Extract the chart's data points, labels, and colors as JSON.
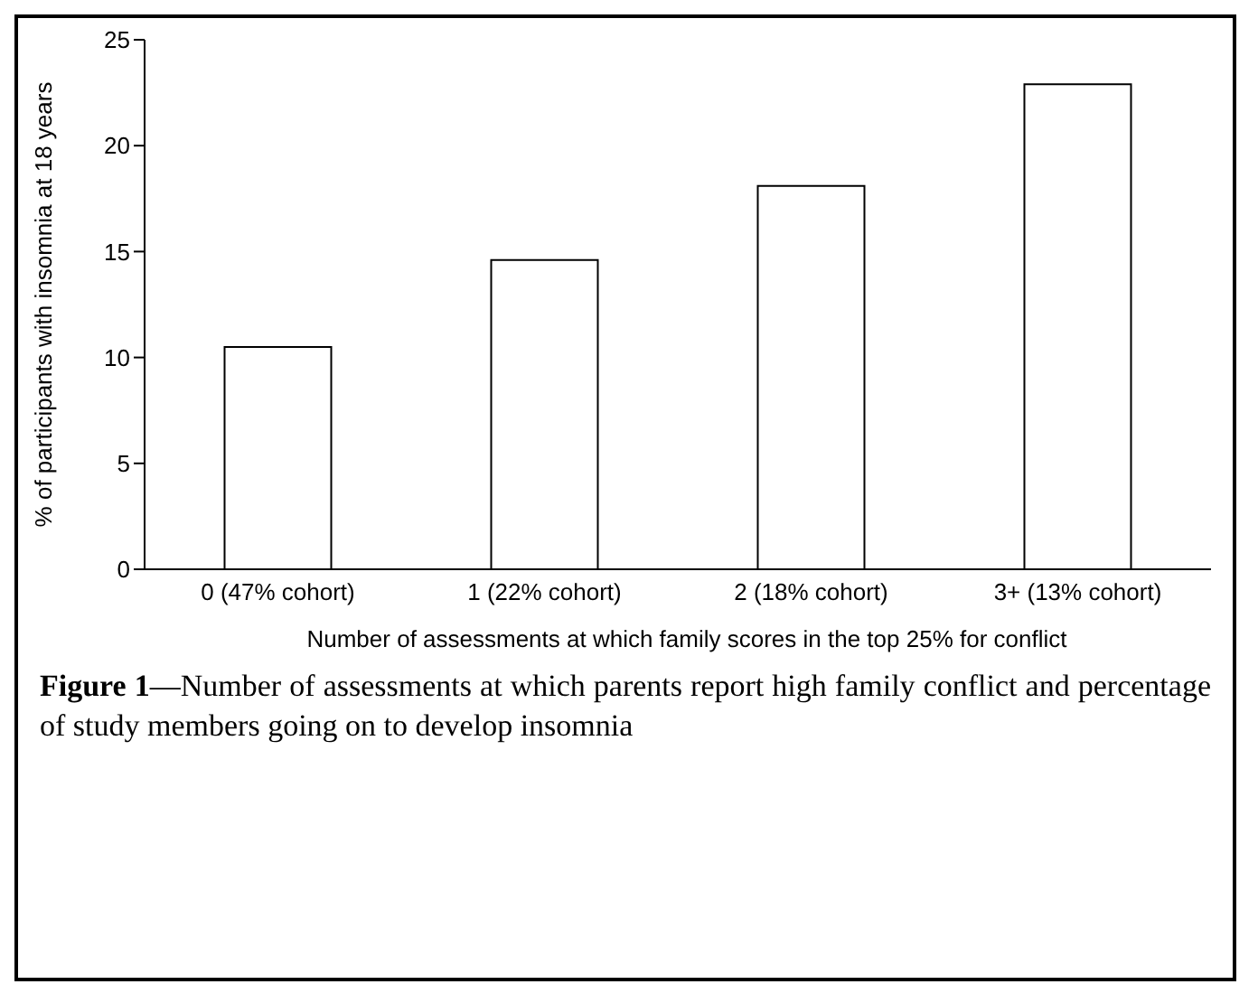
{
  "chart_data": {
    "type": "bar",
    "categories": [
      "0 (47% cohort)",
      "1 (22% cohort)",
      "2 (18% cohort)",
      "3+ (13% cohort)"
    ],
    "values": [
      10.5,
      14.6,
      18.1,
      22.9
    ],
    "color": "#ffffff",
    "xlabel": "Number of assessments at which family scores in the top 25% for conflict",
    "ylabel": "% of participants with insomnia at 18 years",
    "ylim": [
      0,
      25
    ],
    "yticks": [
      0,
      5,
      10,
      15,
      20,
      25
    ],
    "grid": false,
    "legend": false,
    "annotations": [
      "Figure 1—Number of assessments at which parents report high family conflict and percentage of study members going on to develop insomnia"
    ]
  }
}
